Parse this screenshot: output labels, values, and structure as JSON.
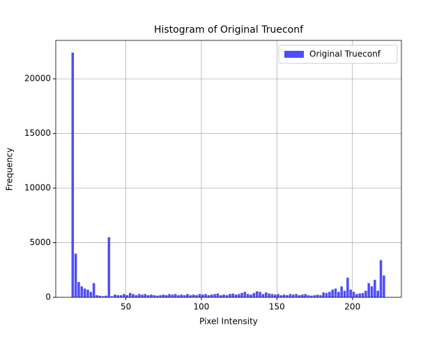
{
  "chart_data": {
    "type": "histogram",
    "title": "Histogram of Original Trueconf",
    "x_label": "Pixel Intensity",
    "y_label": "Frequency",
    "series": [
      {
        "name": "Original Trueconf",
        "color": "#4d4dff",
        "bins": [
          14,
          16,
          18,
          20,
          22,
          24,
          26,
          28,
          30,
          32,
          34,
          36,
          38,
          40,
          42,
          44,
          46,
          48,
          50,
          52,
          54,
          56,
          58,
          60,
          62,
          64,
          66,
          68,
          70,
          72,
          74,
          76,
          78,
          80,
          82,
          84,
          86,
          88,
          90,
          92,
          94,
          96,
          98,
          100,
          102,
          104,
          106,
          108,
          110,
          112,
          114,
          116,
          118,
          120,
          122,
          124,
          126,
          128,
          130,
          132,
          134,
          136,
          138,
          140,
          142,
          144,
          146,
          148,
          150,
          152,
          154,
          156,
          158,
          160,
          162,
          164,
          166,
          168,
          170,
          172,
          174,
          176,
          178,
          180,
          182,
          184,
          186,
          188,
          190,
          192,
          194,
          196,
          198,
          200,
          202,
          204,
          206,
          208,
          210,
          212,
          214,
          216,
          218,
          220,
          222
        ],
        "values": [
          22400,
          4000,
          1400,
          1000,
          800,
          700,
          500,
          1300,
          200,
          150,
          100,
          150,
          5500,
          100,
          250,
          200,
          200,
          300,
          200,
          400,
          300,
          200,
          300,
          250,
          300,
          200,
          250,
          200,
          150,
          200,
          250,
          200,
          300,
          250,
          300,
          200,
          250,
          200,
          300,
          200,
          250,
          200,
          300,
          250,
          300,
          200,
          250,
          300,
          350,
          200,
          250,
          200,
          300,
          350,
          250,
          300,
          400,
          500,
          300,
          250,
          400,
          550,
          500,
          300,
          450,
          350,
          300,
          250,
          300,
          200,
          250,
          200,
          300,
          250,
          300,
          200,
          250,
          300,
          200,
          150,
          200,
          250,
          200,
          450,
          400,
          500,
          700,
          800,
          500,
          1000,
          600,
          1800,
          700,
          500,
          300,
          350,
          400,
          600,
          1300,
          1000,
          1600,
          600,
          3400,
          2000
        ]
      }
    ],
    "xlim": [
      3.6,
      232.4
    ],
    "ylim": [
      0,
      23520
    ],
    "xticks": [
      50,
      100,
      150,
      200
    ],
    "yticks": [
      0,
      5000,
      10000,
      15000,
      20000
    ],
    "grid": true,
    "legend": "upper right"
  }
}
